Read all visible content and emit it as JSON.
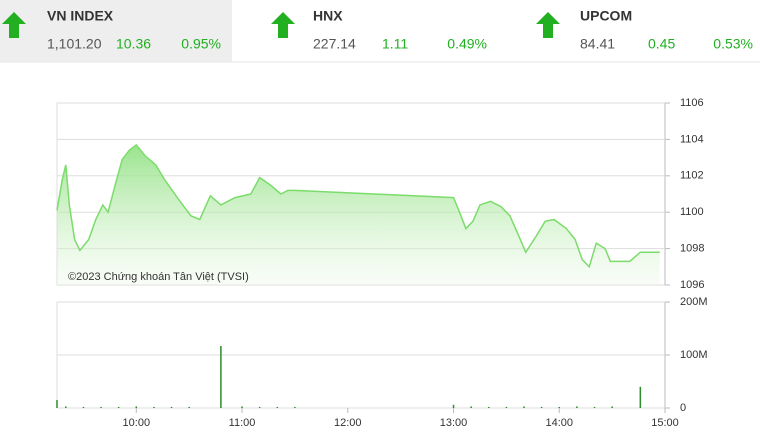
{
  "indices": [
    {
      "name": "VN INDEX",
      "value": "1,101.20",
      "change": "10.36",
      "percent": "0.95%"
    },
    {
      "name": "HNX",
      "value": "227.14",
      "change": "1.11",
      "percent": "0.49%"
    },
    {
      "name": "UPCOM",
      "value": "84.41",
      "change": "0.45",
      "percent": "0.53%"
    }
  ],
  "chart_data": [
    {
      "type": "line",
      "annotation": "©2023 Chứng khoán Tân Việt (TVSI)",
      "color": "#7bdc6b",
      "x": [
        555,
        558,
        560,
        562,
        565,
        568,
        573,
        577,
        581,
        584,
        588,
        592,
        596,
        600,
        605,
        611,
        616,
        624,
        631,
        636,
        642,
        648,
        656,
        665,
        670,
        676,
        682,
        686,
        690,
        780,
        783,
        787,
        791,
        795,
        801,
        807,
        812,
        817,
        821,
        827,
        832,
        837,
        844,
        849,
        853,
        857,
        861,
        866,
        869,
        880,
        886,
        897
      ],
      "values": [
        1100.1,
        1101.8,
        1102.6,
        1100.4,
        1098.5,
        1097.9,
        1098.5,
        1099.6,
        1100.4,
        1100.0,
        1101.5,
        1102.9,
        1103.4,
        1103.7,
        1103.1,
        1102.6,
        1101.8,
        1100.7,
        1099.8,
        1099.6,
        1100.9,
        1100.4,
        1100.8,
        1101.0,
        1101.9,
        1101.5,
        1101.0,
        1101.2,
        1101.2,
        1100.8,
        1100.1,
        1099.1,
        1099.5,
        1100.4,
        1100.6,
        1100.3,
        1099.8,
        1098.7,
        1097.8,
        1098.7,
        1099.5,
        1099.6,
        1099.1,
        1098.5,
        1097.4,
        1097.0,
        1098.3,
        1098.0,
        1097.3,
        1097.3,
        1097.8,
        1097.8
      ],
      "xlim": [
        555,
        900
      ],
      "ylim": [
        1096,
        1106
      ],
      "yticks": [
        1096,
        1098,
        1100,
        1102,
        1104,
        1106
      ],
      "grid": true
    },
    {
      "type": "bar",
      "color": "#2e8b2e",
      "x": [
        555,
        560,
        570,
        580,
        590,
        600,
        610,
        620,
        630,
        648,
        660,
        670,
        680,
        690,
        780,
        790,
        800,
        810,
        820,
        830,
        840,
        850,
        860,
        870,
        886
      ],
      "values": [
        15000000,
        3000000,
        2000000,
        2000000,
        2000000,
        3000000,
        2000000,
        2000000,
        2000000,
        117000000,
        3000000,
        2000000,
        2000000,
        2000000,
        6000000,
        3000000,
        2000000,
        2000000,
        3000000,
        2000000,
        2000000,
        3000000,
        2000000,
        3000000,
        40000000
      ],
      "xlim": [
        555,
        900
      ],
      "ylim": [
        0,
        200000000
      ],
      "yticks": [
        0,
        {
          "value": 100000000,
          "label": "100M"
        },
        {
          "value": 200000000,
          "label": "200M"
        }
      ],
      "xticks": [
        {
          "value": 600,
          "label": "10:00"
        },
        {
          "value": 660,
          "label": "11:00"
        },
        {
          "value": 720,
          "label": "12:00"
        },
        {
          "value": 780,
          "label": "13:00"
        },
        {
          "value": 840,
          "label": "14:00"
        },
        {
          "value": 900,
          "label": "15:00"
        }
      ],
      "grid": true
    }
  ]
}
